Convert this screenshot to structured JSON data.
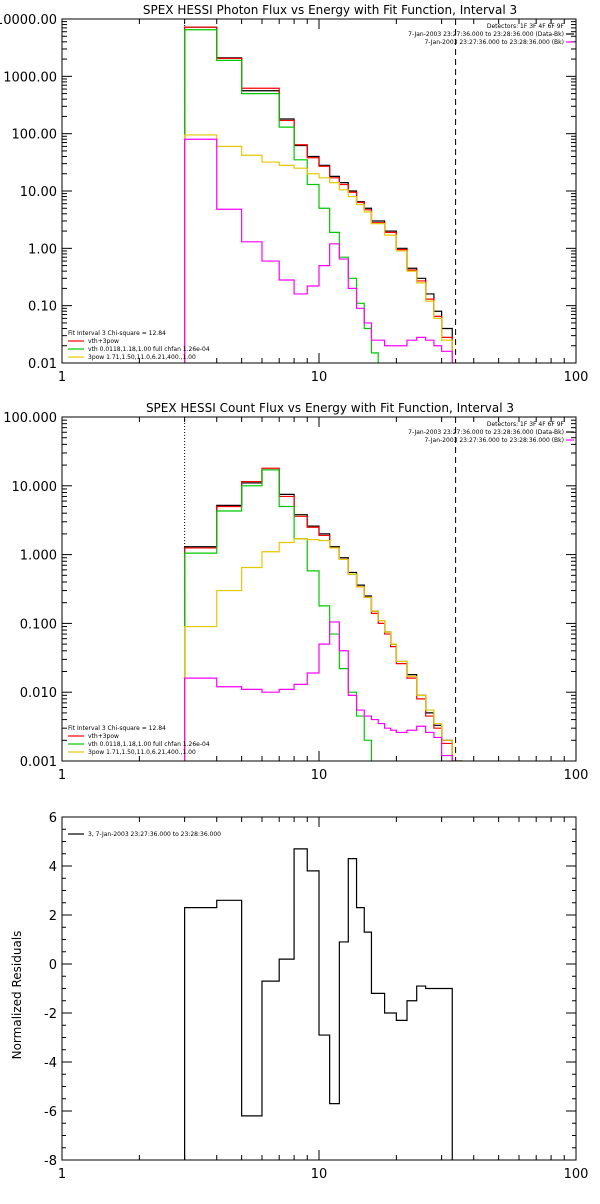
{
  "chart_data": [
    {
      "type": "line",
      "title": "SPEX HESSI Photon Flux vs Energy with Fit Function, Interval 3",
      "xscale": "log",
      "yscale": "log",
      "xlim": [
        1,
        100
      ],
      "ylim": [
        0.01,
        10000
      ],
      "xticks": [
        1,
        10,
        100
      ],
      "xtick_labels": [
        "1",
        "10",
        "100"
      ],
      "yticks": [
        0.01,
        0.1,
        1,
        10,
        100,
        1000,
        10000
      ],
      "ytick_labels": [
        "0.01",
        "0.10",
        "1.00",
        "10.00",
        "100.00",
        "1000.00",
        "10000.00"
      ],
      "vlines": [
        {
          "x": 3,
          "style": "dotted"
        },
        {
          "x": 34,
          "style": "dashed"
        }
      ],
      "legend_top": [
        "Detectors: 1F 3F 4F 6F 9F",
        "7-Jan-2003 23:27:36.000 to 23:28:36.000 (Data-Bk)",
        "7-Jan-2003 23:27:36.000 to 23:28:36.000 (Bk)"
      ],
      "legend_top_colors": [
        "",
        "#000000",
        "#ff00ff"
      ],
      "legend_bottom": [
        "Fit Interval 3   Chi-square = 12.84",
        "vth+3pow",
        "vth 0.0118,1.18,1.00  full chfan 1.26e-04",
        "3pow 1.71,1.50,11.0,6.21,400.,1.00"
      ],
      "legend_bottom_colors": [
        "",
        "#ff0000",
        "#00c800",
        "#e6c800"
      ],
      "series": [
        {
          "color": "#000000",
          "edges": [
            3,
            3.5,
            4,
            4.5,
            5,
            5.5,
            6,
            6.5,
            7,
            7.5,
            8,
            9,
            10,
            11,
            12,
            13,
            14,
            15,
            16,
            18,
            20,
            22,
            24,
            26,
            28,
            30,
            33
          ],
          "values": [
            7200,
            7200,
            2100,
            2100,
            560,
            560,
            560,
            560,
            180,
            180,
            62,
            40,
            28,
            18,
            14,
            10,
            6.5,
            5,
            3,
            2,
            1,
            0.45,
            0.3,
            0.16,
            0.08,
            0.04,
            0.015
          ]
        },
        {
          "color": "#ff0000",
          "edges": [
            3,
            3.5,
            4,
            4.5,
            5,
            5.5,
            6,
            6.5,
            7,
            7.5,
            8,
            9,
            10,
            11,
            12,
            13,
            14,
            15,
            16,
            18,
            20,
            22,
            24,
            26,
            28,
            30,
            33
          ],
          "values": [
            7200,
            7200,
            2050,
            2050,
            620,
            620,
            620,
            620,
            170,
            170,
            64,
            38,
            27,
            17,
            13,
            9.5,
            6.3,
            4.7,
            2.8,
            1.9,
            0.95,
            0.42,
            0.27,
            0.13,
            0.065,
            0.028,
            0.012
          ]
        },
        {
          "color": "#00c800",
          "edges": [
            3,
            3.5,
            4,
            4.5,
            5,
            5.5,
            6,
            6.5,
            7,
            7.5,
            8,
            9,
            10,
            11,
            12,
            13,
            14,
            15,
            16,
            17
          ],
          "values": [
            6500,
            6500,
            1900,
            1900,
            500,
            500,
            500,
            500,
            130,
            130,
            35,
            13,
            5,
            1.9,
            0.7,
            0.3,
            0.11,
            0.04,
            0.015
          ]
        },
        {
          "color": "#e6c800",
          "edges": [
            3,
            3.5,
            4,
            4.5,
            5,
            5.5,
            6,
            6.5,
            7,
            7.5,
            8,
            9,
            10,
            11,
            12,
            13,
            14,
            15,
            16,
            18,
            20,
            22,
            24,
            26,
            28,
            30,
            33
          ],
          "values": [
            95,
            95,
            60,
            60,
            42,
            42,
            32,
            32,
            28,
            28,
            25,
            20,
            17,
            14,
            10.5,
            8,
            5.8,
            4.3,
            2.7,
            1.7,
            0.9,
            0.4,
            0.25,
            0.12,
            0.06,
            0.025,
            0.01
          ]
        },
        {
          "color": "#ff00ff",
          "edges": [
            3,
            3.5,
            4,
            4.5,
            5,
            5.5,
            6,
            6.5,
            7,
            7.5,
            8,
            9,
            10,
            11,
            12,
            13,
            14,
            15,
            16,
            18,
            20,
            22,
            24,
            26,
            28,
            30,
            33
          ],
          "values": [
            80,
            80,
            4.8,
            4.8,
            1.3,
            1.3,
            0.6,
            0.6,
            0.28,
            0.28,
            0.16,
            0.22,
            0.5,
            1.2,
            0.65,
            0.2,
            0.09,
            0.05,
            0.025,
            0.02,
            0.02,
            0.025,
            0.028,
            0.025,
            0.02,
            0.016
          ]
        }
      ]
    },
    {
      "type": "line",
      "title": "SPEX HESSI Count Flux vs Energy with Fit Function, Interval 3",
      "xscale": "log",
      "yscale": "log",
      "xlim": [
        1,
        100
      ],
      "ylim": [
        0.001,
        100
      ],
      "xticks": [
        1,
        10,
        100
      ],
      "xtick_labels": [
        "1",
        "10",
        "100"
      ],
      "yticks": [
        0.001,
        0.01,
        0.1,
        1,
        10,
        100
      ],
      "ytick_labels": [
        "0.001",
        "0.010",
        "0.100",
        "1.000",
        "10.000",
        "100.000"
      ],
      "vlines": [
        {
          "x": 3,
          "style": "dotted"
        },
        {
          "x": 34,
          "style": "dashed"
        }
      ],
      "legend_top": [
        "Detectors: 1F 3F 4F 6F 9F",
        "7-Jan-2003 23:27:36.000 to 23:28:36.000 (Data-Bk)",
        "7-Jan-2003 23:27:36.000 to 23:28:36.000 (Bk)"
      ],
      "legend_top_colors": [
        "",
        "#000000",
        "#ff00ff"
      ],
      "legend_bottom": [
        "Fit Interval 3   Chi-square = 12.84",
        "vth+3pow",
        "vth 0.0118,1.18,1.00  full chfan 1.26e-04",
        "3pow 1.71,1.50,11.0,6.21,400.,1.00"
      ],
      "legend_bottom_colors": [
        "",
        "#ff0000",
        "#00c800",
        "#e6c800"
      ],
      "series": [
        {
          "color": "#000000",
          "edges": [
            3,
            4,
            5,
            6,
            7,
            8,
            9,
            10,
            11,
            12,
            13,
            14,
            15,
            16,
            17,
            18,
            19,
            20,
            22,
            24,
            26,
            28,
            30,
            33,
            36
          ],
          "values": [
            1.3,
            5.2,
            11,
            17,
            7.5,
            3.8,
            2.6,
            2.0,
            1.3,
            0.9,
            0.55,
            0.36,
            0.25,
            0.15,
            0.11,
            0.075,
            0.05,
            0.028,
            0.018,
            0.009,
            0.005,
            0.0033,
            0.002,
            0.001
          ]
        },
        {
          "color": "#ff0000",
          "edges": [
            3,
            4,
            5,
            6,
            7,
            8,
            9,
            10,
            11,
            12,
            13,
            14,
            15,
            16,
            17,
            18,
            19,
            20,
            22,
            24,
            26,
            28,
            30,
            33,
            36
          ],
          "values": [
            1.25,
            5.0,
            11.5,
            18,
            7,
            3.6,
            2.5,
            1.9,
            1.25,
            0.85,
            0.52,
            0.34,
            0.24,
            0.14,
            0.1,
            0.07,
            0.046,
            0.026,
            0.016,
            0.008,
            0.0045,
            0.003,
            0.0018,
            0.0009
          ]
        },
        {
          "color": "#00c800",
          "edges": [
            3,
            4,
            5,
            6,
            7,
            8,
            9,
            10,
            11,
            12,
            13,
            14,
            15,
            16,
            17
          ],
          "values": [
            1.05,
            4.3,
            10,
            17,
            5,
            1.7,
            0.58,
            0.18,
            0.07,
            0.022,
            0.01,
            0.0045,
            0.002,
            0.0009
          ]
        },
        {
          "color": "#e6c800",
          "edges": [
            3,
            4,
            5,
            6,
            7,
            8,
            9,
            10,
            11,
            12,
            13,
            14,
            15,
            16,
            17,
            18,
            19,
            20,
            22,
            24,
            26,
            28,
            30,
            33,
            36
          ],
          "values": [
            0.09,
            0.3,
            0.65,
            1.1,
            1.5,
            1.7,
            1.65,
            1.6,
            1.25,
            0.85,
            0.52,
            0.34,
            0.24,
            0.15,
            0.11,
            0.075,
            0.05,
            0.028,
            0.017,
            0.009,
            0.0055,
            0.0035,
            0.002,
            0.001
          ]
        },
        {
          "color": "#ff00ff",
          "edges": [
            3,
            4,
            5,
            6,
            7,
            8,
            9,
            10,
            11,
            12,
            13,
            14,
            15,
            16,
            17,
            18,
            19,
            20,
            22,
            24,
            26,
            28,
            30,
            33
          ],
          "values": [
            0.016,
            0.012,
            0.011,
            0.01,
            0.011,
            0.013,
            0.019,
            0.05,
            0.105,
            0.04,
            0.009,
            0.0055,
            0.0045,
            0.004,
            0.0035,
            0.003,
            0.0028,
            0.0026,
            0.0028,
            0.0032,
            0.0026,
            0.0022,
            0.0012
          ]
        }
      ]
    },
    {
      "type": "line",
      "xscale": "log",
      "yscale": "linear",
      "xlim": [
        1,
        100
      ],
      "ylim": [
        -8,
        6
      ],
      "xticks": [
        1,
        10,
        100
      ],
      "xtick_labels": [
        "1",
        "10",
        "100"
      ],
      "yticks": [
        -8,
        -6,
        -4,
        -2,
        0,
        2,
        4,
        6
      ],
      "ytick_labels": [
        "-8",
        "-6",
        "-4",
        "-2",
        "0",
        "2",
        "4",
        "6"
      ],
      "ylabel": "Normalized Residuals",
      "legend": "3,  7-Jan-2003 23:27:36.000 to 23:28:36.000",
      "series": [
        {
          "color": "#000000",
          "edges": [
            3,
            4,
            5,
            6,
            7,
            8,
            9,
            10,
            11,
            12,
            13,
            14,
            15,
            16,
            18,
            20,
            22,
            24,
            26,
            28,
            30,
            33
          ],
          "values": [
            2.3,
            2.6,
            -6.2,
            -0.7,
            0.2,
            4.7,
            3.8,
            -2.9,
            -5.7,
            0.9,
            4.3,
            2.3,
            1.3,
            -1.2,
            -2.0,
            -2.3,
            -1.5,
            -0.9,
            -1.0,
            -1.0,
            -1.0
          ],
          "drop_to": -8
        }
      ]
    }
  ]
}
